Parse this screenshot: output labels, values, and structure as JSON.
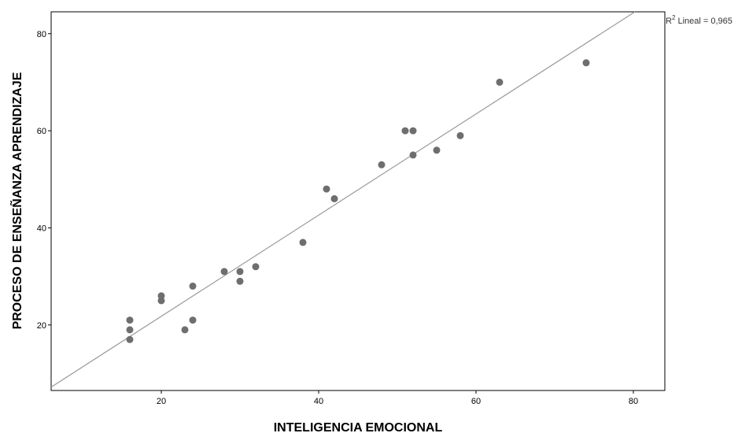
{
  "chart_data": {
    "type": "scatter",
    "title": "",
    "xlabel": "INTELIGENCIA EMOCIONAL",
    "ylabel": "PROCESO DE ENSEÑANZA APRENDIZAJE",
    "xlim": [
      6,
      84
    ],
    "ylim": [
      6.5,
      84.5
    ],
    "xticks": [
      20,
      40,
      60,
      80
    ],
    "yticks": [
      20,
      40,
      60,
      80
    ],
    "grid": false,
    "points": [
      {
        "x": 16,
        "y": 21
      },
      {
        "x": 16,
        "y": 19
      },
      {
        "x": 16,
        "y": 17
      },
      {
        "x": 20,
        "y": 26
      },
      {
        "x": 20,
        "y": 25
      },
      {
        "x": 23,
        "y": 19
      },
      {
        "x": 24,
        "y": 28
      },
      {
        "x": 24,
        "y": 21
      },
      {
        "x": 28,
        "y": 31
      },
      {
        "x": 30,
        "y": 31
      },
      {
        "x": 30,
        "y": 29
      },
      {
        "x": 32,
        "y": 32
      },
      {
        "x": 38,
        "y": 37
      },
      {
        "x": 41,
        "y": 48
      },
      {
        "x": 42,
        "y": 46
      },
      {
        "x": 48,
        "y": 53
      },
      {
        "x": 51,
        "y": 60
      },
      {
        "x": 52,
        "y": 60
      },
      {
        "x": 52,
        "y": 55
      },
      {
        "x": 55,
        "y": 56
      },
      {
        "x": 58,
        "y": 59
      },
      {
        "x": 63,
        "y": 70
      },
      {
        "x": 74,
        "y": 74
      }
    ],
    "fit_line": {
      "type": "linear",
      "x": [
        6,
        80.2
      ],
      "y": [
        7.2,
        84.5
      ],
      "label_sup": "2",
      "label_r": "R",
      "label_rest": " Lineal = 0,965"
    },
    "colors": {
      "points": "#6e6e6e",
      "fit_line": "#9a9a9a",
      "frame": "#000000"
    }
  }
}
